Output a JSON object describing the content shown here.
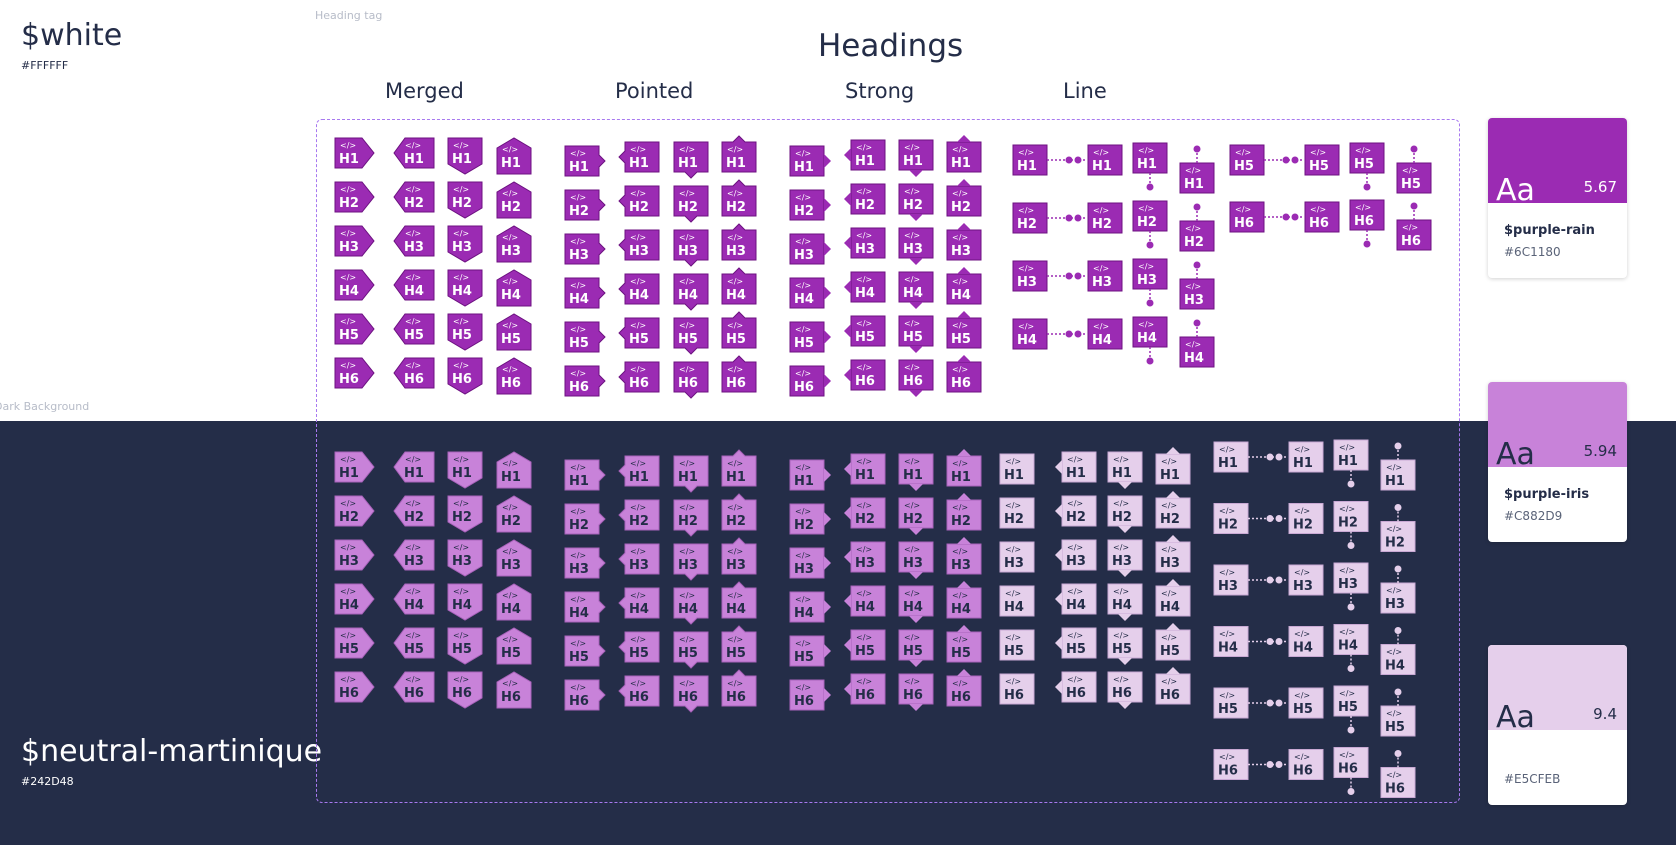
{
  "labels": {
    "heading_tag": "Heading tag",
    "dark_background": "Dark Background"
  },
  "backgrounds": {
    "light": {
      "name": "$white",
      "hex": "#FFFFFF"
    },
    "dark": {
      "name": "$neutral-martinique",
      "hex": "#242D48"
    }
  },
  "title": "Headings",
  "columns": [
    "Merged",
    "Pointed",
    "Strong",
    "Line"
  ],
  "tag": {
    "code": "</>",
    "levels": [
      "H1",
      "H2",
      "H3",
      "H4",
      "H5",
      "H6"
    ]
  },
  "colors": {
    "purple_rain": "#6C1180",
    "tag_light": "#9B2BB3",
    "purple_iris": "#C882D9",
    "tag_text_dark": "#242D48",
    "pale": "#E5CFEB",
    "frame": "#A879F0"
  },
  "swatches": [
    {
      "aa": "Aa",
      "ratio": "5.67",
      "name": "$purple-rain",
      "hex": "#6C1180",
      "color": "#9B2BB3",
      "text_color": "#FFFFFF"
    },
    {
      "aa": "Aa",
      "ratio": "5.94",
      "name": "$purple-iris",
      "hex": "#C882D9",
      "color": "#C882D9",
      "text_color": "#242D48"
    },
    {
      "aa": "Aa",
      "ratio": "9.4",
      "name": "",
      "hex": "#E5CFEB",
      "color": "#E5CFEB",
      "text_color": "#242D48"
    }
  ]
}
